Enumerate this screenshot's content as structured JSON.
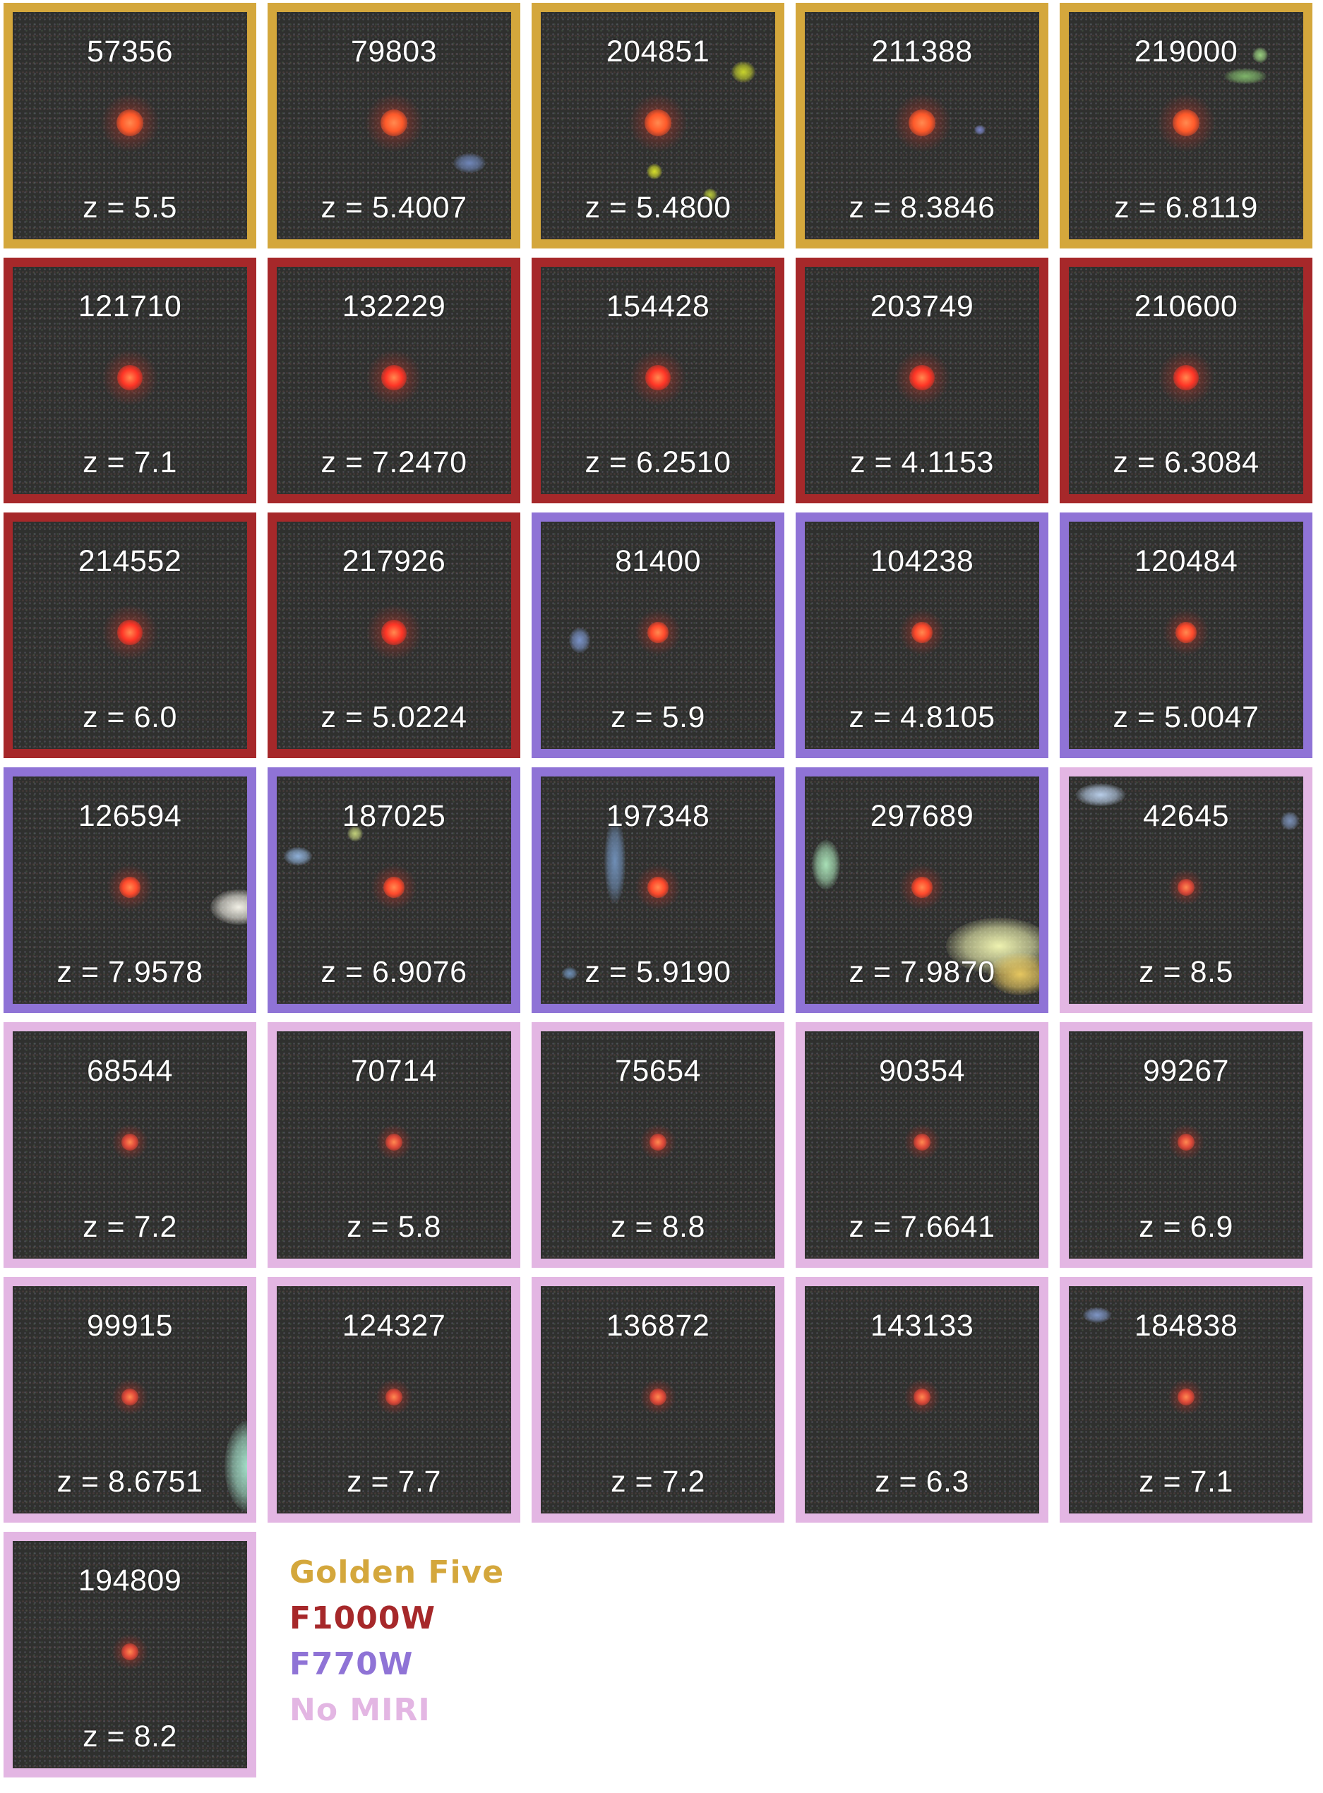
{
  "colors": {
    "golden": "#d4a73c",
    "f1000w": "#a6282a",
    "f770w": "#8f73d6",
    "nomiri": "#e3b6e3"
  },
  "legend": [
    {
      "label": "Golden Five",
      "group": "golden"
    },
    {
      "label": "F1000W",
      "group": "f1000w"
    },
    {
      "label": "F770W",
      "group": "f770w"
    },
    {
      "label": "No MIRI",
      "group": "nomiri"
    }
  ],
  "sources": [
    {
      "id": "57356",
      "z": "z = 5.5",
      "group": "golden"
    },
    {
      "id": "79803",
      "z": "z = 5.4007",
      "group": "golden"
    },
    {
      "id": "204851",
      "z": "z = 5.4800",
      "group": "golden"
    },
    {
      "id": "211388",
      "z": "z = 8.3846",
      "group": "golden"
    },
    {
      "id": "219000",
      "z": "z = 6.8119",
      "group": "golden"
    },
    {
      "id": "121710",
      "z": "z = 7.1",
      "group": "f1000w"
    },
    {
      "id": "132229",
      "z": "z = 7.2470",
      "group": "f1000w"
    },
    {
      "id": "154428",
      "z": "z = 6.2510",
      "group": "f1000w"
    },
    {
      "id": "203749",
      "z": "z = 4.1153",
      "group": "f1000w"
    },
    {
      "id": "210600",
      "z": "z = 6.3084",
      "group": "f1000w"
    },
    {
      "id": "214552",
      "z": "z = 6.0",
      "group": "f1000w"
    },
    {
      "id": "217926",
      "z": "z = 5.0224",
      "group": "f1000w"
    },
    {
      "id": "81400",
      "z": "z = 5.9",
      "group": "f770w"
    },
    {
      "id": "104238",
      "z": "z = 4.8105",
      "group": "f770w"
    },
    {
      "id": "120484",
      "z": "z = 5.0047",
      "group": "f770w"
    },
    {
      "id": "126594",
      "z": "z = 7.9578",
      "group": "f770w"
    },
    {
      "id": "187025",
      "z": "z = 6.9076",
      "group": "f770w"
    },
    {
      "id": "197348",
      "z": "z = 5.9190",
      "group": "f770w"
    },
    {
      "id": "297689",
      "z": "z = 7.9870",
      "group": "f770w"
    },
    {
      "id": "42645",
      "z": "z = 8.5",
      "group": "nomiri"
    },
    {
      "id": "68544",
      "z": "z = 7.2",
      "group": "nomiri"
    },
    {
      "id": "70714",
      "z": "z = 5.8",
      "group": "nomiri"
    },
    {
      "id": "75654",
      "z": "z = 8.8",
      "group": "nomiri"
    },
    {
      "id": "90354",
      "z": "z = 7.6641",
      "group": "nomiri"
    },
    {
      "id": "99267",
      "z": "z = 6.9",
      "group": "nomiri"
    },
    {
      "id": "99915",
      "z": "z = 8.6751",
      "group": "nomiri"
    },
    {
      "id": "124327",
      "z": "z = 7.7",
      "group": "nomiri"
    },
    {
      "id": "136872",
      "z": "z = 7.2",
      "group": "nomiri"
    },
    {
      "id": "143133",
      "z": "z = 6.3",
      "group": "nomiri"
    },
    {
      "id": "184838",
      "z": "z = 7.1",
      "group": "nomiri"
    },
    {
      "id": "194809",
      "z": "z = 8.2",
      "group": "nomiri"
    }
  ]
}
